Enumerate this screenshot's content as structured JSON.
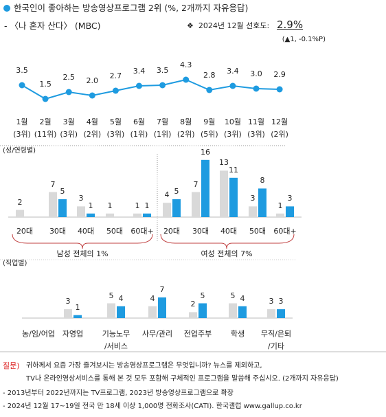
{
  "header": {
    "title": "한국인이 좋아하는 방송영상프로그램 2위 (%, 2개까지 자유응답)",
    "subtitle": "- 〈나 혼자 산다〉 (MBC)",
    "stat_label": "❖  2024년 12월 선호도:",
    "stat_value": "2.9%",
    "stat_change": "(▲1, -0.1%P)"
  },
  "chart_data": [
    {
      "type": "line",
      "categories": [
        "1월",
        "2월",
        "3월",
        "4월",
        "5월",
        "6월",
        "7월",
        "8월",
        "9월",
        "10월",
        "11월",
        "12월"
      ],
      "ranks": [
        "(3위)",
        "(11위)",
        "(3위)",
        "(2위)",
        "(3위)",
        "(1위)",
        "(1위)",
        "(2위)",
        "(5위)",
        "(3위)",
        "(3위)",
        "(2위)"
      ],
      "values": [
        3.5,
        1.5,
        2.5,
        2.0,
        2.7,
        3.4,
        3.5,
        4.3,
        2.8,
        3.4,
        3.0,
        2.9
      ],
      "value_labels": [
        "3.5",
        "1.5",
        "2.5",
        "2.0",
        "2.7",
        "3.4",
        "3.5",
        "4.3",
        "2.8",
        "3.4",
        "3.0",
        "2.9"
      ],
      "color": "#1e9be0"
    },
    {
      "type": "bar",
      "section_label": "(성/연령별)",
      "group_label": "남성 전체의 1%",
      "categories": [
        "20대",
        "30대",
        "40대",
        "50대",
        "60대+"
      ],
      "series": [
        {
          "color": "#d9d9d9",
          "values": [
            2,
            7,
            3,
            1,
            1
          ]
        },
        {
          "color": "#1e9be0",
          "values": [
            null,
            5,
            1,
            null,
            1
          ]
        }
      ]
    },
    {
      "type": "bar",
      "group_label": "여성 전체의 7%",
      "categories": [
        "20대",
        "30대",
        "40대",
        "50대",
        "60대+"
      ],
      "series": [
        {
          "color": "#d9d9d9",
          "values": [
            4,
            7,
            13,
            3,
            1
          ]
        },
        {
          "color": "#1e9be0",
          "values": [
            5,
            16,
            11,
            8,
            3
          ]
        }
      ]
    },
    {
      "type": "bar",
      "section_label": "(직업별)",
      "categories": [
        "농/임/어업",
        "자영업",
        "기능노무\n/서비스",
        "사무/관리",
        "전업주부",
        "학생",
        "무직/은퇴\n/기타"
      ],
      "series": [
        {
          "color": "#d9d9d9",
          "values": [
            null,
            3,
            5,
            4,
            2,
            5,
            3
          ]
        },
        {
          "color": "#1e9be0",
          "values": [
            null,
            1,
            4,
            7,
            5,
            4,
            3
          ]
        }
      ]
    }
  ],
  "footer": {
    "question_label": "질문)",
    "question": [
      "귀하께서 요즘 가장 즐겨보시는 방송영상프로그램은 무엇입니까? 뉴스를 제외하고,",
      "TV나 온라인영상서비스를 통해 본 것 모두 포함해 구체적인 프로그램을 말씀해 주십시오. (2개까지 자유응답)"
    ],
    "notes": [
      "- 2013년부터 2022년까지는 TV프로그램, 2023년 방송영상프로그램으로 확장",
      "- 2024년 12월 17~19일 전국 만 18세 이상 1,000명 전화조사(CATI). 한국갤럽 www.gallup.co.kr"
    ]
  }
}
